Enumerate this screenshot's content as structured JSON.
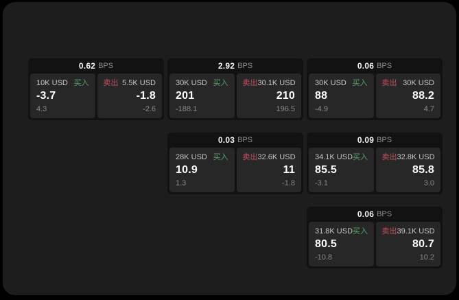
{
  "ui": {
    "bps_unit": "BPS",
    "buy_label": "买入",
    "sell_label": "卖出"
  },
  "colors": {
    "page_background": "#000000",
    "window_background": "#1d1d1d",
    "card_background": "#121212",
    "panel_background": "#272727",
    "buy_green": "#55a169",
    "sell_red": "#c2505e",
    "value_white": "#fdfdfd",
    "muted_gray": "#8a8a8a"
  },
  "cards": [
    {
      "bps": "0.62",
      "buy": {
        "amount": "10K USD",
        "value": "-3.7",
        "change": "4.3"
      },
      "sell": {
        "amount": "5.5K USD",
        "value": "-1.8",
        "change": "-2.6"
      }
    },
    {
      "bps": "2.92",
      "buy": {
        "amount": "30K USD",
        "value": "201",
        "change": "-188.1"
      },
      "sell": {
        "amount": "30.1K USD",
        "value": "210",
        "change": "196.5"
      }
    },
    {
      "bps": "0.06",
      "buy": {
        "amount": "30K USD",
        "value": "88",
        "change": "-4.9"
      },
      "sell": {
        "amount": "30K USD",
        "value": "88.2",
        "change": "4.7"
      }
    },
    {
      "bps": "0.03",
      "buy": {
        "amount": "28K USD",
        "value": "10.9",
        "change": "1.3"
      },
      "sell": {
        "amount": "32.6K USD",
        "value": "11",
        "change": "-1.8"
      }
    },
    {
      "bps": "0.09",
      "buy": {
        "amount": "34.1K USD",
        "value": "85.5",
        "change": "-3.1"
      },
      "sell": {
        "amount": "32.8K USD",
        "value": "85.8",
        "change": "3.0"
      }
    },
    {
      "bps": "0.06",
      "buy": {
        "amount": "31.8K USD",
        "value": "80.5",
        "change": "-10.8"
      },
      "sell": {
        "amount": "39.1K USD",
        "value": "80.7",
        "change": "10.2"
      }
    }
  ]
}
